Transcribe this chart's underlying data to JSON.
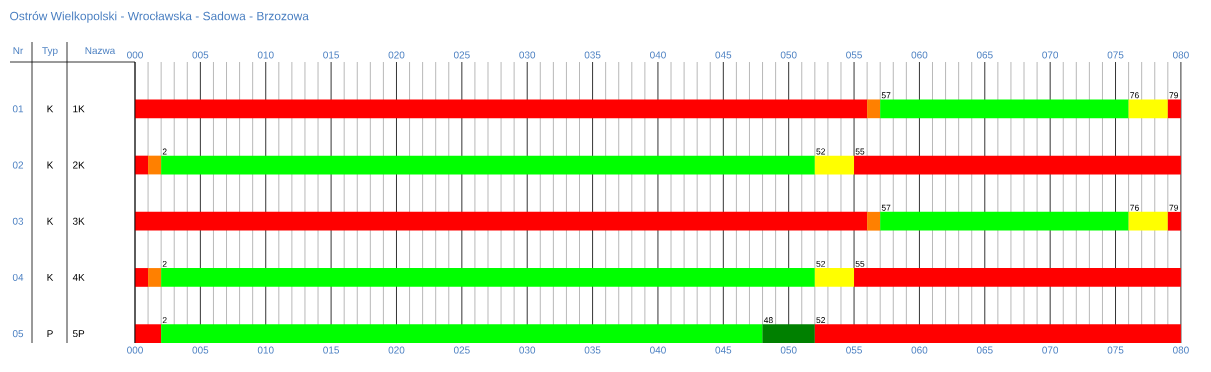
{
  "chart_data": {
    "type": "bar",
    "orientation": "horizontal",
    "stacked": true,
    "title": "Ostrów Wielkopolski - Wrocławska - Sadowa - Brzozowa",
    "categories": [
      "1K",
      "2K",
      "3K",
      "4K",
      "5P"
    ],
    "series": [
      {
        "values": [
          56,
          1,
          56,
          1,
          2
        ],
        "colors": [
          "#ff0000",
          "#ff0000",
          "#ff0000",
          "#ff0000",
          "#ff0000"
        ]
      },
      {
        "values": [
          1,
          1,
          1,
          1,
          46
        ],
        "colors": [
          "#ff8000",
          "#ff8000",
          "#ff8000",
          "#ff8000",
          "#00ff00"
        ]
      },
      {
        "values": [
          19,
          50,
          19,
          50,
          4
        ],
        "colors": [
          "#00ff00",
          "#00ff00",
          "#00ff00",
          "#00ff00",
          "#008000"
        ]
      },
      {
        "values": [
          3,
          3,
          3,
          3,
          28
        ],
        "colors": [
          "#ffff00",
          "#ffff00",
          "#ffff00",
          "#ffff00",
          "#ff0000"
        ]
      },
      {
        "values": [
          1,
          25,
          1,
          25,
          null
        ],
        "colors": [
          "#ff0000",
          "#ff0000",
          "#ff0000",
          "#ff0000",
          null
        ]
      }
    ],
    "xlim": [
      0,
      80
    ],
    "xticks": [
      {
        "value": 0,
        "label": "000"
      },
      {
        "value": 5,
        "label": "005"
      },
      {
        "value": 10,
        "label": "010"
      },
      {
        "value": 15,
        "label": "015"
      },
      {
        "value": 20,
        "label": "020"
      },
      {
        "value": 25,
        "label": "025"
      },
      {
        "value": 30,
        "label": "030"
      },
      {
        "value": 35,
        "label": "035"
      },
      {
        "value": 40,
        "label": "040"
      },
      {
        "value": 45,
        "label": "045"
      },
      {
        "value": 50,
        "label": "050"
      },
      {
        "value": 55,
        "label": "055"
      },
      {
        "value": 60,
        "label": "060"
      },
      {
        "value": 65,
        "label": "065"
      },
      {
        "value": 70,
        "label": "070"
      },
      {
        "value": 75,
        "label": "075"
      },
      {
        "value": 80,
        "label": "080"
      }
    ],
    "x2lim": [
      0,
      80
    ],
    "x2ticks": [
      {
        "value": 0,
        "label": "000"
      },
      {
        "value": 5,
        "label": "005"
      },
      {
        "value": 10,
        "label": "010"
      },
      {
        "value": 15,
        "label": "015"
      },
      {
        "value": 20,
        "label": "020"
      },
      {
        "value": 25,
        "label": "025"
      },
      {
        "value": 30,
        "label": "030"
      },
      {
        "value": 35,
        "label": "035"
      },
      {
        "value": 40,
        "label": "040"
      },
      {
        "value": 45,
        "label": "045"
      },
      {
        "value": 50,
        "label": "050"
      },
      {
        "value": 55,
        "label": "055"
      },
      {
        "value": 60,
        "label": "060"
      },
      {
        "value": 65,
        "label": "065"
      },
      {
        "value": 70,
        "label": "070"
      },
      {
        "value": 75,
        "label": "075"
      },
      {
        "value": 80,
        "label": "080"
      }
    ],
    "grid": true,
    "annotations": [
      "Nr",
      "Typ",
      "Nazwa",
      "01",
      "K",
      "02",
      "K",
      "03",
      "K",
      "04",
      "K",
      "05",
      "P",
      {
        "text": "57",
        "x": 57,
        "y": "1K"
      },
      {
        "text": "76",
        "x": 76,
        "y": "1K"
      },
      {
        "text": "79",
        "x": 79,
        "y": "1K"
      },
      {
        "text": "2",
        "x": 2,
        "y": "2K"
      },
      {
        "text": "52",
        "x": 52,
        "y": "2K"
      },
      {
        "text": "55",
        "x": 55,
        "y": "2K"
      },
      {
        "text": "57",
        "x": 57,
        "y": "3K"
      },
      {
        "text": "76",
        "x": 76,
        "y": "3K"
      },
      {
        "text": "79",
        "x": 79,
        "y": "3K"
      },
      {
        "text": "2",
        "x": 2,
        "y": "4K"
      },
      {
        "text": "52",
        "x": 52,
        "y": "4K"
      },
      {
        "text": "55",
        "x": 55,
        "y": "4K"
      },
      {
        "text": "2",
        "x": 2,
        "y": "5P"
      },
      {
        "text": "48",
        "x": 48,
        "y": "5P"
      },
      {
        "text": "52",
        "x": 52,
        "y": "5P"
      }
    ]
  }
}
